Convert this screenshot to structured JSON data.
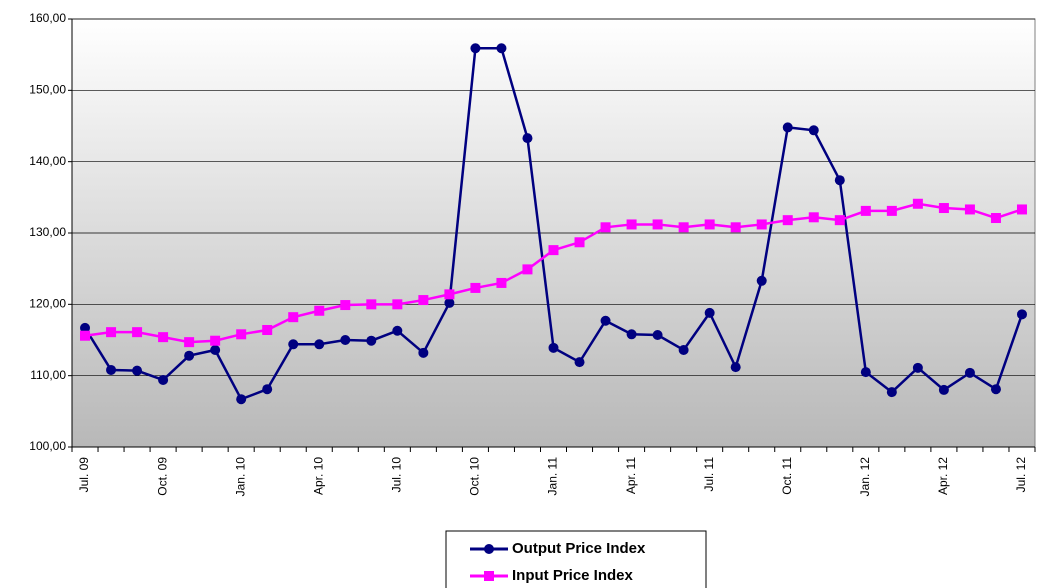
{
  "chart_data": {
    "type": "line",
    "categories": [
      "Jul. 09",
      null,
      null,
      "Oct. 09",
      null,
      null,
      "Jan. 10",
      null,
      null,
      "Apr. 10",
      null,
      null,
      "Jul. 10",
      null,
      null,
      "Oct. 10",
      null,
      null,
      "Jan. 11",
      null,
      null,
      "Apr. 11",
      null,
      null,
      "Jul. 11",
      null,
      null,
      "Oct. 11",
      null,
      null,
      "Jan. 12",
      null,
      null,
      "Apr. 12",
      null,
      null,
      "Jul. 12"
    ],
    "series": [
      {
        "name": "Output Price Index",
        "color": "#000080",
        "marker": "circle",
        "values": [
          116.7,
          110.8,
          110.7,
          109.4,
          112.8,
          113.6,
          106.7,
          108.1,
          114.4,
          114.4,
          115.0,
          114.9,
          116.3,
          113.2,
          120.2,
          155.9,
          155.9,
          143.3,
          113.9,
          111.9,
          117.7,
          115.8,
          115.7,
          113.6,
          118.8,
          111.2,
          123.3,
          144.8,
          144.4,
          137.4,
          110.5,
          107.7,
          111.1,
          108.0,
          110.4,
          108.1,
          118.6
        ]
      },
      {
        "name": "Input Price Index",
        "color": "#ff00ff",
        "marker": "square",
        "values": [
          115.6,
          116.1,
          116.1,
          115.4,
          114.7,
          114.9,
          115.8,
          116.4,
          118.2,
          119.1,
          119.9,
          120.0,
          120.0,
          120.6,
          121.4,
          122.3,
          123.0,
          124.9,
          127.6,
          128.7,
          130.8,
          131.2,
          131.2,
          130.8,
          131.2,
          130.8,
          131.2,
          131.8,
          132.2,
          131.8,
          133.1,
          133.1,
          134.1,
          133.5,
          133.3,
          132.1,
          133.3
        ]
      }
    ],
    "ylim": [
      100,
      160
    ],
    "yticks": [
      {
        "value": 100,
        "label": "100,00"
      },
      {
        "value": 110,
        "label": "110,00"
      },
      {
        "value": 120,
        "label": "120,00"
      },
      {
        "value": 130,
        "label": "130,00"
      },
      {
        "value": 140,
        "label": "140,00"
      },
      {
        "value": 150,
        "label": "150,00"
      },
      {
        "value": 160,
        "label": "160,00"
      }
    ],
    "grid": true,
    "legend": "bottom"
  }
}
